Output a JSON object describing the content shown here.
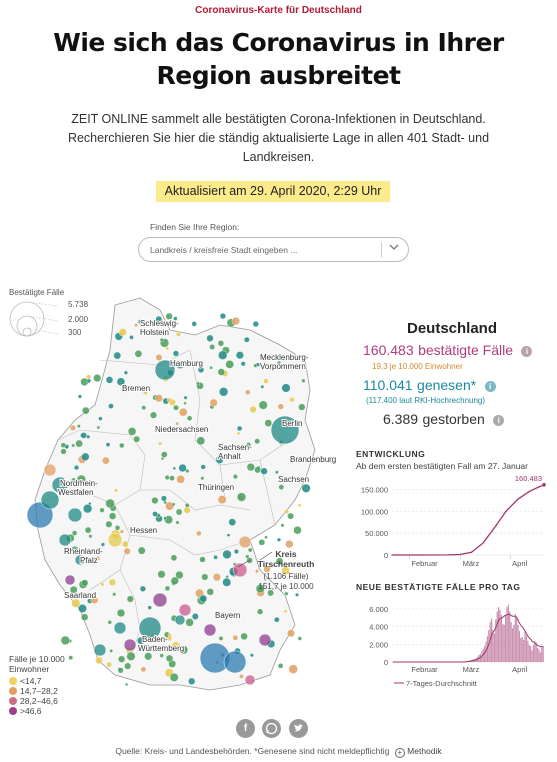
{
  "kicker": "Coronavirus-Karte für Deutschland",
  "headline": "Wie sich das Coronavirus in Ihrer Region ausbreitet",
  "intro": "ZEIT ONLINE sammelt alle bestätigten Corona-Infektionen in Deutschland. Recherchieren Sie hier die ständig aktualisierte Lage in allen 401 Stadt- und Landkreisen.",
  "updated": "Aktualisiert am 29. April 2020, 2:29 Uhr",
  "search": {
    "label": "Finden Sie Ihre Region:",
    "placeholder": "Landkreis / kreisfreie Stadt eingeben ..."
  },
  "size_legend": {
    "title": "Bestätigte Fälle",
    "values": [
      "5.738",
      "2.000",
      "300"
    ]
  },
  "color_legend": {
    "title": "Fälle je 10.000 Einwohner",
    "items": [
      {
        "label": "<14,7",
        "color": "#f2d25c"
      },
      {
        "label": "14,7–28,2",
        "color": "#e4a05f"
      },
      {
        "label": "28,2–46,6",
        "color": "#cf6d84"
      },
      {
        "label": ">46,6",
        "color": "#9d3f8e"
      }
    ]
  },
  "map": {
    "states": [
      "Schleswig-Holstein",
      "Hamburg",
      "Mecklenburg-Vorpommern",
      "Bremen",
      "Niedersachsen",
      "Berlin",
      "Sachsen-Anhalt",
      "Brandenburg",
      "Nordrhein-Westfalen",
      "Sachsen",
      "Thüringen",
      "Hessen",
      "Rheinland-Pfalz",
      "Saarland",
      "Bayern",
      "Baden-Württemberg"
    ],
    "callout": {
      "name": "Kreis Tirschenreuth",
      "cases": "(1.106 Fälle)",
      "rate": "151,7 je 10.000"
    },
    "colors": {
      "water": "#2b7bb0",
      "teal": "#1e8a86",
      "green": "#4a9e5a",
      "yellow": "#e6c84e",
      "orange": "#e0a060",
      "pink": "#cc5a8e",
      "purple": "#8e3b8f"
    }
  },
  "panel": {
    "title": "Deutschland",
    "confirmed": {
      "value": "160.483",
      "label": "bestätigte Fälle",
      "sub": "19,3  je 10.000 Einwohner",
      "color": "#b03b7e",
      "sub_color": "#d28a2e"
    },
    "recovered": {
      "value": "110.041",
      "label": "genesen*",
      "sub": "(117.400  laut RKI-Hochrechnung)",
      "color": "#1a8aa0"
    },
    "deaths": {
      "value": "6.389",
      "label": "gestorben"
    },
    "info_icon": "info-icon"
  },
  "development": {
    "title": "ENTWICKLUNG",
    "subtitle": "Ab dem ersten bestätigten Fall am 27. Januar",
    "end_label": "160.483"
  },
  "daily": {
    "title": "NEUE BESTÄTIGTE FÄLLE PRO TAG",
    "legend": "7-Tages-Durchschnitt"
  },
  "chart_data": [
    {
      "type": "line",
      "title": "ENTWICKLUNG",
      "subtitle": "Ab dem ersten bestätigten Fall am 27. Januar",
      "x_ticks": [
        "Februar",
        "März",
        "April"
      ],
      "y_ticks": [
        "0",
        "50.000",
        "100.000",
        "150.000"
      ],
      "ylim": [
        0,
        160000
      ],
      "x": [
        "27.01.",
        "15.02.",
        "01.03.",
        "08.03.",
        "15.03.",
        "22.03.",
        "29.03.",
        "05.04.",
        "12.04.",
        "19.04.",
        "24.04.",
        "28.04."
      ],
      "values": [
        1,
        16,
        130,
        1100,
        6000,
        27000,
        62000,
        100000,
        127000,
        145000,
        154000,
        160483
      ],
      "end_label": "160.483",
      "color": "#a0356f"
    },
    {
      "type": "bar",
      "title": "NEUE BESTÄTIGTE FÄLLE PRO TAG",
      "x_ticks": [
        "Februar",
        "März",
        "April"
      ],
      "y_ticks": [
        "0",
        "2.000",
        "4.000",
        "6.000"
      ],
      "ylim": [
        0,
        7000
      ],
      "values": [
        0,
        0,
        0,
        0,
        0,
        0,
        0,
        0,
        0,
        0,
        0,
        0,
        0,
        0,
        0,
        0,
        0,
        0,
        0,
        0,
        0,
        0,
        0,
        0,
        0,
        0,
        0,
        0,
        0,
        0,
        0,
        0,
        0,
        0,
        0,
        0,
        0,
        0,
        0,
        0,
        0,
        0,
        0,
        0,
        0,
        0,
        0,
        0,
        0,
        0,
        10,
        30,
        60,
        100,
        130,
        160,
        200,
        250,
        300,
        350,
        450,
        600,
        800,
        900,
        1200,
        1500,
        1800,
        2300,
        2900,
        3600,
        4500,
        4900,
        3600,
        3200,
        4800,
        5700,
        6200,
        5900,
        5300,
        4300,
        4200,
        5300,
        6200,
        6500,
        5700,
        4500,
        3800,
        4200,
        5400,
        5000,
        4200,
        3500,
        2700,
        2800,
        2500,
        3500,
        3000,
        2400,
        1900,
        1800,
        1300,
        1900,
        2400,
        2200,
        1600,
        1400,
        1100,
        1600,
        1800
      ],
      "series_label": "7-Tages-Durchschnitt",
      "color": "#a0356f"
    }
  ],
  "footer": {
    "source": "Quelle: Kreis- und Landesbehörden. *Genesene sind nicht meldepflichtig",
    "methodik": "Methodik",
    "icons": [
      "facebook-icon",
      "whatsapp-icon",
      "twitter-icon"
    ]
  }
}
